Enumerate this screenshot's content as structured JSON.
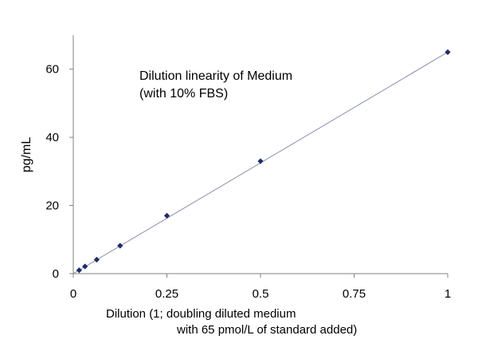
{
  "chart_data": {
    "type": "scatter",
    "title": "",
    "annotation": [
      "Dilution linearity of Medium",
      "(with 10% FBS)"
    ],
    "xlabel": [
      "Dilution (1; doubling diluted medium",
      "with 65 pmol/L of standard added)"
    ],
    "ylabel": "pg/mL",
    "xlim": [
      0,
      1
    ],
    "ylim": [
      0,
      70
    ],
    "x_ticks": [
      0,
      0.25,
      0.5,
      0.75,
      1
    ],
    "x_tick_labels": [
      "0",
      "0.25",
      "0.5",
      "0.75",
      "1"
    ],
    "y_ticks": [
      0,
      20,
      40,
      60
    ],
    "y_tick_labels": [
      "0",
      "20",
      "40",
      "60"
    ],
    "grid": false,
    "legend": "none",
    "series": [
      {
        "x": [
          0.0156,
          0.03125,
          0.0625,
          0.125,
          0.25,
          0.5,
          1
        ],
        "y": [
          1.0,
          2.1,
          4.1,
          8.2,
          17.0,
          33.0,
          65.0
        ],
        "marker": "diamond",
        "color": "#1f2a6b"
      }
    ],
    "trendline": {
      "from": [
        0,
        0
      ],
      "to": [
        1,
        65
      ],
      "color": "#8a8fa8"
    }
  }
}
